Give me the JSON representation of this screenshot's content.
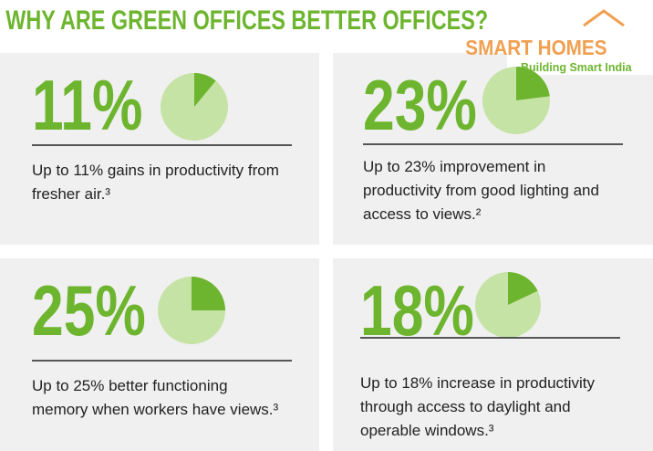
{
  "header": {
    "title": "WHY ARE GREEN OFFICES BETTER OFFICES?",
    "logo": {
      "name": "SMART HOMES",
      "tagline": "Building Smart India"
    }
  },
  "chart_data": [
    {
      "type": "pie",
      "values": [
        11
      ],
      "value_labels": [
        "11%"
      ],
      "color": "#6db52e",
      "lines": [
        "Up to 11% gains in productivity from",
        "fresher air.³"
      ]
    },
    {
      "type": "pie",
      "values": [
        23
      ],
      "value_labels": [
        "23%"
      ],
      "color": "#6db52e",
      "lines": [
        "Up to 23% improvement in",
        "productivity from good lighting and",
        "access to views.²"
      ]
    },
    {
      "type": "pie",
      "values": [
        25
      ],
      "value_labels": [
        "25%"
      ],
      "color": "#6db52e",
      "lines": [
        "Up to 25% better functioning",
        "memory when workers have views.³"
      ]
    },
    {
      "type": "pie",
      "values": [
        18
      ],
      "value_labels": [
        "18%"
      ],
      "color": "#6db52e",
      "lines": [
        "Up to 18% increase in productivity",
        "through access to daylight and",
        "operable windows.³"
      ]
    }
  ]
}
